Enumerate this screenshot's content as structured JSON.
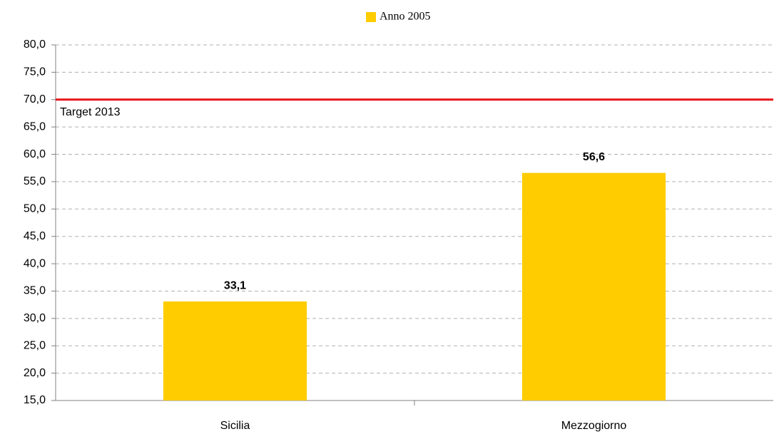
{
  "chart_data": {
    "type": "bar",
    "categories": [
      "Sicilia",
      "Mezzogiorno"
    ],
    "series": [
      {
        "name": "Anno 2005",
        "color": "#ffcc00",
        "values": [
          33.1,
          56.6
        ],
        "value_labels": [
          "33,1",
          "56,6"
        ]
      }
    ],
    "ylim": [
      15,
      80
    ],
    "yticks": [
      {
        "value": 15,
        "label": "15,0"
      },
      {
        "value": 20,
        "label": "20,0"
      },
      {
        "value": 25,
        "label": "25,0"
      },
      {
        "value": 30,
        "label": "30,0"
      },
      {
        "value": 35,
        "label": "35,0"
      },
      {
        "value": 40,
        "label": "40,0"
      },
      {
        "value": 45,
        "label": "45,0"
      },
      {
        "value": 50,
        "label": "50,0"
      },
      {
        "value": 55,
        "label": "55,0"
      },
      {
        "value": 60,
        "label": "60,0"
      },
      {
        "value": 65,
        "label": "65,0"
      },
      {
        "value": 70,
        "label": "70,0"
      },
      {
        "value": 75,
        "label": "75,0"
      },
      {
        "value": 80,
        "label": "80,0"
      }
    ],
    "grid": true,
    "target": {
      "value": 70,
      "label": "Target 2013",
      "color": "#e8141b"
    }
  }
}
